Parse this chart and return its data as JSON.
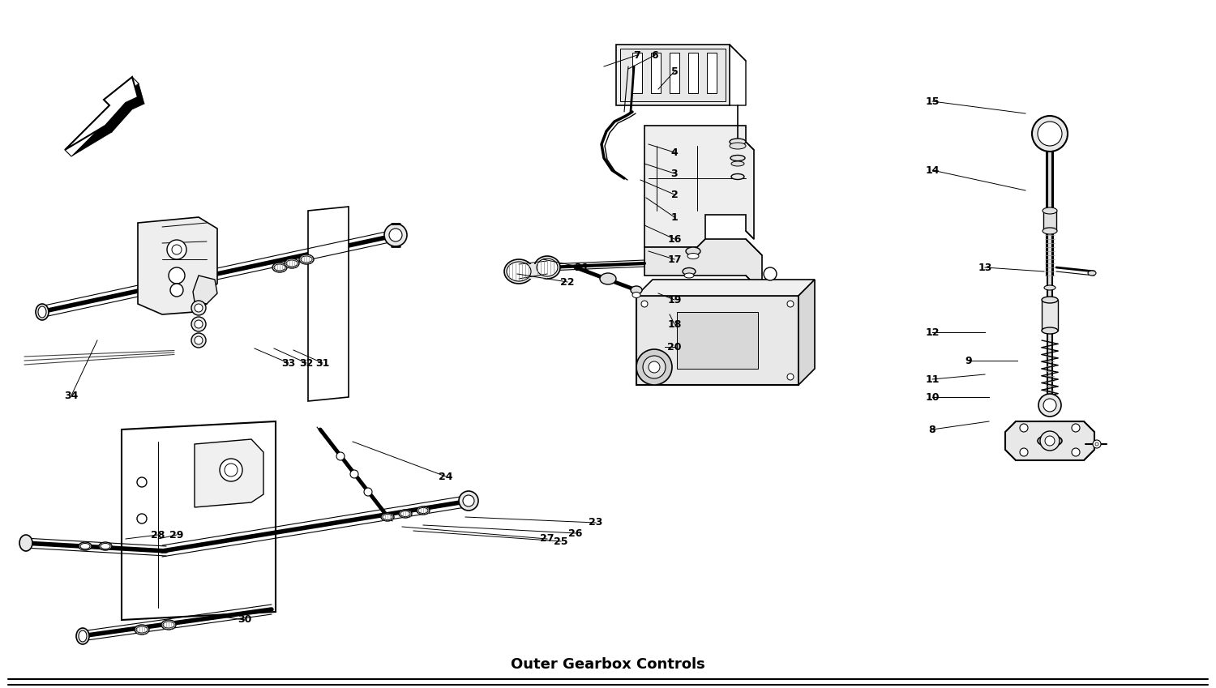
{
  "title": "Outer Gearbox Controls",
  "bg_color": "#ffffff",
  "lc": "#000000",
  "figsize": [
    15.0,
    8.49
  ],
  "dpi": 100,
  "labels": [
    [
      "1",
      832,
      268,
      797,
      244
    ],
    [
      "2",
      832,
      240,
      790,
      222
    ],
    [
      "3",
      832,
      214,
      795,
      202
    ],
    [
      "4",
      832,
      188,
      800,
      178
    ],
    [
      "5",
      832,
      88,
      812,
      110
    ],
    [
      "6",
      808,
      68,
      775,
      85
    ],
    [
      "7",
      786,
      68,
      745,
      82
    ],
    [
      "8",
      1150,
      530,
      1220,
      520
    ],
    [
      "9",
      1195,
      445,
      1255,
      445
    ],
    [
      "10",
      1150,
      490,
      1220,
      490
    ],
    [
      "11",
      1150,
      468,
      1215,
      462
    ],
    [
      "12",
      1150,
      410,
      1215,
      410
    ],
    [
      "13",
      1215,
      330,
      1288,
      335
    ],
    [
      "14",
      1150,
      210,
      1265,
      235
    ],
    [
      "15",
      1150,
      125,
      1265,
      140
    ],
    [
      "16",
      832,
      295,
      795,
      278
    ],
    [
      "17",
      832,
      320,
      800,
      310
    ],
    [
      "18",
      832,
      400,
      826,
      388
    ],
    [
      "19",
      832,
      370,
      812,
      362
    ],
    [
      "20",
      832,
      428,
      820,
      428
    ],
    [
      "21",
      718,
      330,
      670,
      320
    ],
    [
      "22",
      700,
      348,
      638,
      338
    ],
    [
      "23",
      735,
      645,
      574,
      638
    ],
    [
      "24",
      550,
      588,
      435,
      545
    ],
    [
      "25",
      692,
      668,
      510,
      655
    ],
    [
      "26",
      710,
      658,
      522,
      648
    ],
    [
      "27",
      675,
      665,
      496,
      650
    ],
    [
      "28",
      195,
      660,
      155,
      665
    ],
    [
      "29",
      218,
      660,
      195,
      665
    ],
    [
      "30",
      302,
      765,
      268,
      760
    ],
    [
      "31",
      398,
      448,
      362,
      432
    ],
    [
      "32",
      378,
      448,
      338,
      430
    ],
    [
      "33",
      356,
      448,
      314,
      430
    ],
    [
      "34",
      88,
      488,
      120,
      420
    ]
  ]
}
